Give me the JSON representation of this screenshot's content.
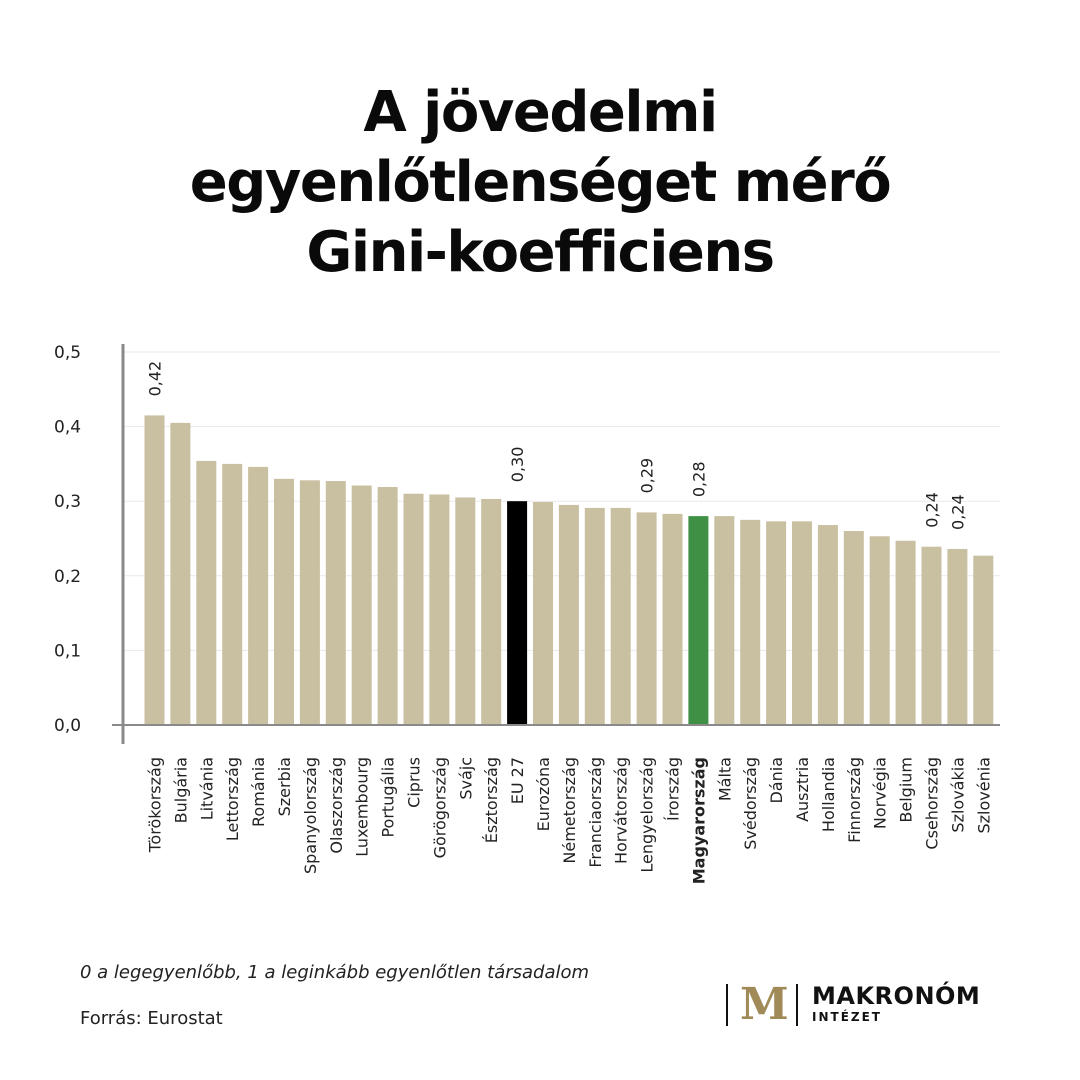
{
  "title_lines": [
    "A jövedelmi",
    "egyenlőtlenséget mérő",
    "Gini-koefficiens"
  ],
  "note": "0 a legegyenlőbb, 1 a leginkább egyenlőtlen társadalom",
  "source": "Forrás: Eurostat",
  "logo": {
    "mark": "M",
    "name": "MAKRONÓM",
    "sub": "INTÉZET"
  },
  "colors": {
    "bar_default": "#c9bfa1",
    "bar_eu": "#000000",
    "bar_hungary": "#3f9044",
    "grid": "#e9e9e9",
    "axis": "#8a8a8a",
    "logo_accent": "#a08a57"
  },
  "chart_data": {
    "type": "bar",
    "ylim": [
      0,
      0.5
    ],
    "yticks": [
      "0,0",
      "0,1",
      "0,2",
      "0,3",
      "0,4",
      "0,5"
    ],
    "grid": true,
    "categories": [
      "Törökország",
      "Bulgária",
      "Litvánia",
      "Lettország",
      "Románia",
      "Szerbia",
      "Spanyolország",
      "Olaszország",
      "Luxembourg",
      "Portugália",
      "Ciprus",
      "Görögország",
      "Svájc",
      "Észtország",
      "EU 27",
      "Eurozóna",
      "Németország",
      "Franciaország",
      "Horvátország",
      "Lengyelország",
      "Írország",
      "Magyarország",
      "Málta",
      "Svédország",
      "Dánia",
      "Ausztria",
      "Hollandia",
      "Finnország",
      "Norvégia",
      "Belgium",
      "Csehország",
      "Szlovákia",
      "Szlovénia"
    ],
    "values": [
      0.415,
      0.405,
      0.354,
      0.35,
      0.346,
      0.33,
      0.328,
      0.327,
      0.321,
      0.319,
      0.31,
      0.309,
      0.305,
      0.303,
      0.3,
      0.299,
      0.295,
      0.291,
      0.291,
      0.285,
      0.283,
      0.28,
      0.28,
      0.275,
      0.273,
      0.273,
      0.268,
      0.26,
      0.253,
      0.247,
      0.239,
      0.236,
      0.227
    ],
    "data_labels": [
      {
        "category": "Törökország",
        "text": "0,42"
      },
      {
        "category": "EU 27",
        "text": "0,30"
      },
      {
        "category": "Lengyelország",
        "text": "0,29"
      },
      {
        "category": "Magyarország",
        "text": "0,28"
      },
      {
        "category": "Csehország",
        "text": "0,24"
      },
      {
        "category": "Szlovákia",
        "text": "0,24"
      }
    ],
    "highlight": {
      "EU 27": "bar_eu",
      "Magyarország": "bar_hungary"
    },
    "bold_category": "Magyarország"
  }
}
